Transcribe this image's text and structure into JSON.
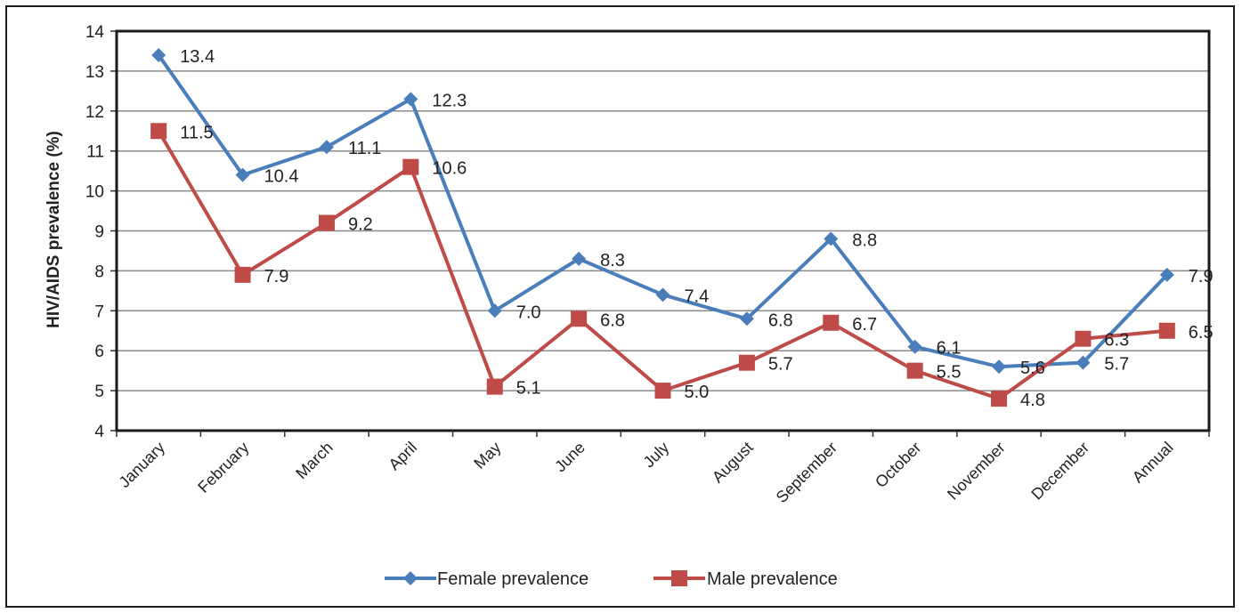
{
  "chart_data": {
    "type": "line",
    "title": "",
    "xlabel": "",
    "ylabel": "HIV/AIDS prevalence (%)",
    "categories": [
      "January",
      "February",
      "March",
      "April",
      "May",
      "June",
      "July",
      "August",
      "September",
      "October",
      "November",
      "December",
      "Annual"
    ],
    "ylim": [
      4,
      14
    ],
    "yticks": [
      4,
      5,
      6,
      7,
      8,
      9,
      10,
      11,
      12,
      13,
      14
    ],
    "grid": true,
    "legend_position": "bottom",
    "series": [
      {
        "name": "Female prevalence",
        "color": "#4a7ebb",
        "marker": "diamond",
        "values": [
          13.4,
          10.4,
          11.1,
          12.3,
          7.0,
          8.3,
          7.4,
          6.8,
          8.8,
          6.1,
          5.6,
          5.7,
          7.9
        ],
        "labels": [
          "13.4",
          "10.4",
          "11.1",
          "12.3",
          "7.0",
          "8.3",
          "7.4",
          "6.8",
          "8.8",
          "6.1",
          "5.6",
          "5.7",
          "7.9"
        ]
      },
      {
        "name": "Male prevalence",
        "color": "#be4b48",
        "marker": "square",
        "values": [
          11.5,
          7.9,
          9.2,
          10.6,
          5.1,
          6.8,
          5.0,
          5.7,
          6.7,
          5.5,
          4.8,
          6.3,
          6.5
        ],
        "labels": [
          "11.5",
          "7.9",
          "9.2",
          "10.6",
          "5.1",
          "6.8",
          "5.0",
          "5.7",
          "6.7",
          "5.5",
          "4.8",
          "6.3",
          "6.5"
        ]
      }
    ]
  }
}
